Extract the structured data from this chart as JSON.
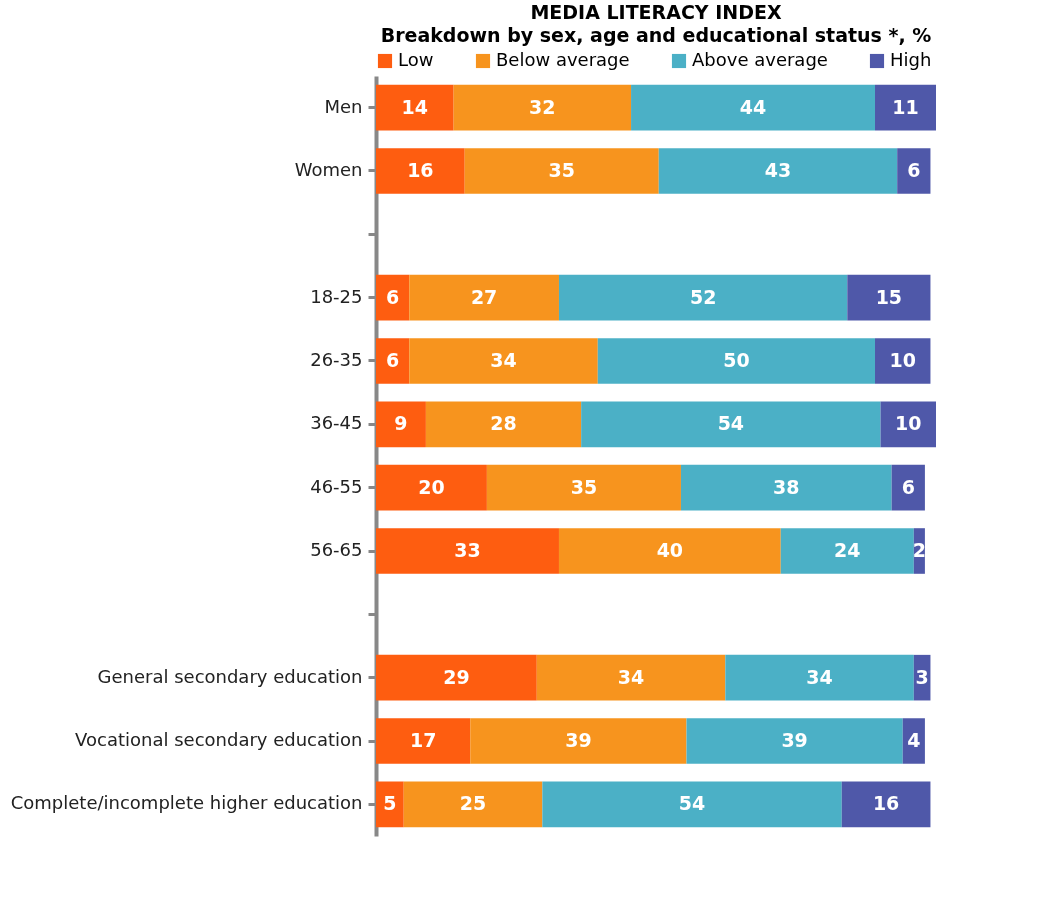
{
  "chart_data": {
    "type": "bar",
    "orientation": "horizontal",
    "stacked": true,
    "title": "MEDIA LITERACY INDEX",
    "subtitle": "Breakdown by sex, age and educational status *, %",
    "categories": [
      "Men",
      "Women",
      null,
      "18-25",
      "26-35",
      "36-45",
      "46-55",
      "56-65",
      null,
      "General secondary education",
      "Vocational secondary education",
      "Complete/incomplete higher education"
    ],
    "series": [
      {
        "name": "Low",
        "color": "#fe5d10",
        "values": [
          14,
          16,
          null,
          6,
          6,
          9,
          20,
          33,
          null,
          29,
          17,
          5
        ]
      },
      {
        "name": "Below average",
        "color": "#f7941e",
        "values": [
          32,
          35,
          null,
          27,
          34,
          28,
          35,
          40,
          null,
          34,
          39,
          25
        ]
      },
      {
        "name": "Above average",
        "color": "#4bb0c6",
        "values": [
          44,
          43,
          null,
          52,
          50,
          54,
          38,
          24,
          null,
          34,
          39,
          54
        ]
      },
      {
        "name": "High",
        "color": "#4f58a9",
        "values": [
          11,
          6,
          null,
          15,
          10,
          10,
          6,
          2,
          null,
          3,
          4,
          16
        ]
      }
    ],
    "data_labels": true,
    "legend": "top"
  }
}
